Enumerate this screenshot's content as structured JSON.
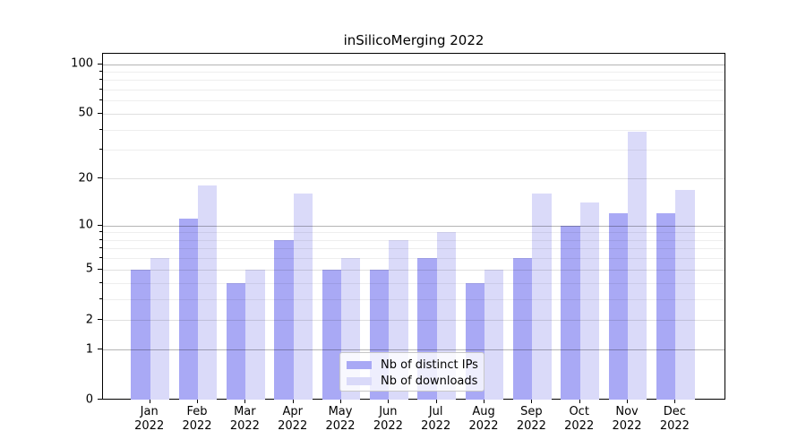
{
  "title": "inSilicoMerging 2022",
  "chart_data": {
    "type": "bar",
    "title": "inSilicoMerging 2022",
    "categories": [
      "Jan",
      "Feb",
      "Mar",
      "Apr",
      "May",
      "Jun",
      "Jul",
      "Aug",
      "Sep",
      "Oct",
      "Nov",
      "Dec"
    ],
    "category_year": "2022",
    "series": [
      {
        "name": "Nb of distinct IPs",
        "color": "#a9a9f5",
        "values": [
          5,
          11,
          4,
          8,
          5,
          5,
          6,
          4,
          6,
          10,
          12,
          12
        ]
      },
      {
        "name": "Nb of downloads",
        "color": "#dadaf9",
        "values": [
          6,
          18,
          5,
          16,
          6,
          8,
          9,
          5,
          16,
          14,
          39,
          17
        ]
      }
    ],
    "y_scale": "log1p",
    "ylim": [
      0,
      100
    ],
    "yticks": [
      0,
      1,
      2,
      5,
      10,
      20,
      50,
      100
    ],
    "yticks_mid": [
      2,
      5,
      20,
      50
    ],
    "yticks_decade": [
      1,
      10,
      100
    ],
    "yticks_minor": [
      3,
      4,
      6,
      7,
      8,
      9,
      30,
      40,
      60,
      70,
      80,
      90
    ],
    "grid": true,
    "legend_position": "lower center",
    "xlabel": "",
    "ylabel": ""
  }
}
